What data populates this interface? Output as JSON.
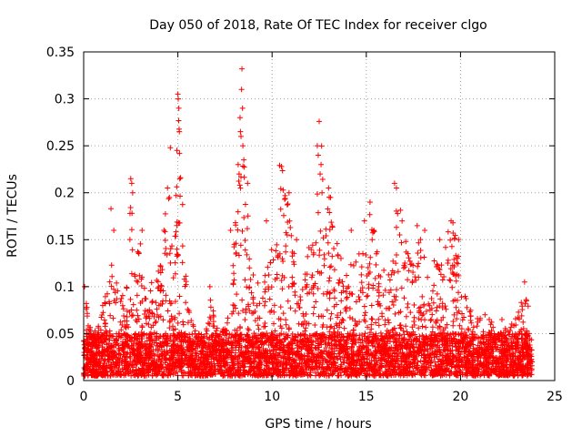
{
  "chart_data": {
    "type": "scatter",
    "title": "Day 050 of 2018, Rate Of TEC Index for receiver clgo",
    "xlabel": "GPS time / hours",
    "ylabel": "ROTI / TECUs",
    "xlim": [
      0,
      25
    ],
    "ylim": [
      0,
      0.35
    ],
    "xticks": [
      0,
      5,
      10,
      15,
      20,
      25
    ],
    "yticks": [
      0,
      0.05,
      0.1,
      0.15,
      0.2,
      0.25,
      0.3,
      0.35
    ],
    "xtick_labels": [
      "0",
      "5",
      "10",
      "15",
      "20",
      "25"
    ],
    "ytick_labels": [
      "0",
      "0.05",
      "0.1",
      "0.15",
      "0.2",
      "0.25",
      "0.3",
      "0.35"
    ],
    "grid": true,
    "marker": "plus",
    "color": "#ff0000",
    "envelope": [
      [
        0.0,
        0.09
      ],
      [
        0.1,
        0.1
      ],
      [
        0.3,
        0.06
      ],
      [
        0.5,
        0.05
      ],
      [
        0.8,
        0.06
      ],
      [
        1.0,
        0.08
      ],
      [
        1.3,
        0.1
      ],
      [
        1.5,
        0.13
      ],
      [
        1.7,
        0.11
      ],
      [
        2.0,
        0.09
      ],
      [
        2.3,
        0.1
      ],
      [
        2.5,
        0.21
      ],
      [
        2.7,
        0.12
      ],
      [
        3.0,
        0.15
      ],
      [
        3.3,
        0.09
      ],
      [
        3.5,
        0.1
      ],
      [
        3.8,
        0.13
      ],
      [
        4.0,
        0.15
      ],
      [
        4.3,
        0.18
      ],
      [
        4.5,
        0.2
      ],
      [
        4.7,
        0.19
      ],
      [
        4.9,
        0.22
      ],
      [
        5.1,
        0.3
      ],
      [
        5.3,
        0.16
      ],
      [
        5.5,
        0.09
      ],
      [
        5.8,
        0.06
      ],
      [
        6.0,
        0.05
      ],
      [
        6.3,
        0.05
      ],
      [
        6.5,
        0.06
      ],
      [
        6.8,
        0.1
      ],
      [
        7.0,
        0.06
      ],
      [
        7.3,
        0.05
      ],
      [
        7.5,
        0.06
      ],
      [
        7.8,
        0.09
      ],
      [
        8.0,
        0.15
      ],
      [
        8.2,
        0.22
      ],
      [
        8.4,
        0.33
      ],
      [
        8.6,
        0.2
      ],
      [
        8.8,
        0.16
      ],
      [
        9.0,
        0.13
      ],
      [
        9.3,
        0.1
      ],
      [
        9.5,
        0.09
      ],
      [
        9.8,
        0.14
      ],
      [
        10.0,
        0.16
      ],
      [
        10.3,
        0.15
      ],
      [
        10.5,
        0.23
      ],
      [
        10.8,
        0.2
      ],
      [
        11.0,
        0.17
      ],
      [
        11.3,
        0.13
      ],
      [
        11.5,
        0.1
      ],
      [
        11.8,
        0.13
      ],
      [
        12.0,
        0.17
      ],
      [
        12.3,
        0.18
      ],
      [
        12.5,
        0.27
      ],
      [
        12.7,
        0.25
      ],
      [
        12.9,
        0.21
      ],
      [
        13.2,
        0.19
      ],
      [
        13.5,
        0.15
      ],
      [
        13.8,
        0.13
      ],
      [
        14.0,
        0.14
      ],
      [
        14.3,
        0.15
      ],
      [
        14.6,
        0.14
      ],
      [
        15.0,
        0.17
      ],
      [
        15.3,
        0.19
      ],
      [
        15.6,
        0.14
      ],
      [
        16.0,
        0.12
      ],
      [
        16.3,
        0.11
      ],
      [
        16.7,
        0.21
      ],
      [
        17.0,
        0.16
      ],
      [
        17.3,
        0.13
      ],
      [
        17.7,
        0.16
      ],
      [
        18.0,
        0.15
      ],
      [
        18.3,
        0.15
      ],
      [
        18.6,
        0.13
      ],
      [
        18.9,
        0.12
      ],
      [
        19.2,
        0.15
      ],
      [
        19.5,
        0.17
      ],
      [
        19.8,
        0.16
      ],
      [
        20.0,
        0.1
      ],
      [
        20.3,
        0.09
      ],
      [
        20.6,
        0.08
      ],
      [
        21.0,
        0.07
      ],
      [
        21.3,
        0.06
      ],
      [
        21.6,
        0.07
      ],
      [
        22.0,
        0.05
      ],
      [
        22.5,
        0.06
      ],
      [
        23.0,
        0.07
      ],
      [
        23.5,
        0.1
      ],
      [
        23.8,
        0.04
      ]
    ],
    "outliers": [
      [
        0.05,
        0.1
      ],
      [
        1.45,
        0.183
      ],
      [
        1.6,
        0.16
      ],
      [
        2.5,
        0.215
      ],
      [
        2.55,
        0.21
      ],
      [
        2.6,
        0.2
      ],
      [
        3.1,
        0.16
      ],
      [
        4.45,
        0.205
      ],
      [
        4.55,
        0.195
      ],
      [
        4.6,
        0.248
      ],
      [
        4.95,
        0.245
      ],
      [
        5.0,
        0.305
      ],
      [
        5.02,
        0.3
      ],
      [
        5.05,
        0.29
      ],
      [
        5.08,
        0.265
      ],
      [
        5.1,
        0.215
      ],
      [
        6.7,
        0.1
      ],
      [
        7.8,
        0.16
      ],
      [
        8.3,
        0.28
      ],
      [
        8.32,
        0.265
      ],
      [
        8.35,
        0.26
      ],
      [
        8.38,
        0.31
      ],
      [
        8.4,
        0.332
      ],
      [
        8.43,
        0.29
      ],
      [
        8.45,
        0.25
      ],
      [
        8.5,
        0.235
      ],
      [
        8.2,
        0.23
      ],
      [
        8.25,
        0.22
      ],
      [
        8.7,
        0.21
      ],
      [
        9.7,
        0.17
      ],
      [
        10.4,
        0.229
      ],
      [
        10.5,
        0.228
      ],
      [
        10.9,
        0.2
      ],
      [
        11.3,
        0.15
      ],
      [
        12.4,
        0.25
      ],
      [
        12.45,
        0.24
      ],
      [
        12.5,
        0.276
      ],
      [
        12.6,
        0.23
      ],
      [
        12.55,
        0.22
      ],
      [
        12.65,
        0.2
      ],
      [
        13.0,
        0.205
      ],
      [
        13.1,
        0.195
      ],
      [
        14.2,
        0.16
      ],
      [
        14.9,
        0.17
      ],
      [
        15.2,
        0.19
      ],
      [
        15.4,
        0.16
      ],
      [
        16.5,
        0.21
      ],
      [
        16.6,
        0.205
      ],
      [
        16.9,
        0.17
      ],
      [
        17.7,
        0.165
      ],
      [
        18.1,
        0.16
      ],
      [
        18.9,
        0.15
      ],
      [
        19.5,
        0.17
      ],
      [
        19.6,
        0.168
      ],
      [
        19.9,
        0.15
      ],
      [
        23.4,
        0.105
      ],
      [
        23.5,
        0.085
      ],
      [
        21.3,
        0.07
      ],
      [
        22.2,
        0.065
      ]
    ],
    "baseline_min": 0.005,
    "baseline_typ": 0.03
  }
}
